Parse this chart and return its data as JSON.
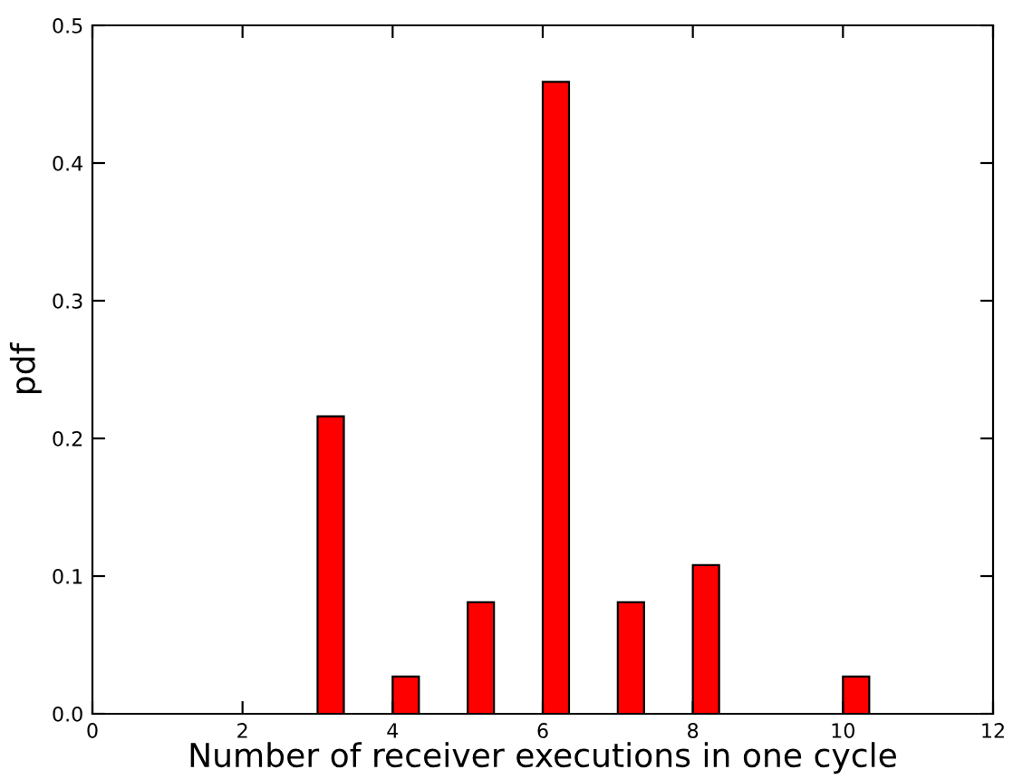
{
  "chart_data": {
    "type": "bar",
    "xlabel": "Number of receiver executions in one cycle",
    "ylabel": "pdf",
    "x": [
      0.175,
      1.175,
      2.175,
      3.175,
      4.175,
      5.175,
      6.175,
      7.175,
      8.175,
      9.175,
      10.175
    ],
    "series": [
      {
        "color": "#ff0000",
        "values": [
          0,
          0,
          0,
          0.216,
          0.027,
          0.081,
          0.459,
          0.081,
          0.108,
          0,
          0.027
        ]
      }
    ],
    "xlim": [
      0,
      12
    ],
    "xticks": [
      0,
      2,
      4,
      6,
      8,
      10,
      12
    ],
    "ylim": [
      0,
      0.5
    ],
    "yticks": [
      {
        "value": 0,
        "label": "0.0"
      },
      0.1,
      0.2,
      0.3,
      0.4,
      0.5
    ],
    "grid": false,
    "legend": false
  }
}
